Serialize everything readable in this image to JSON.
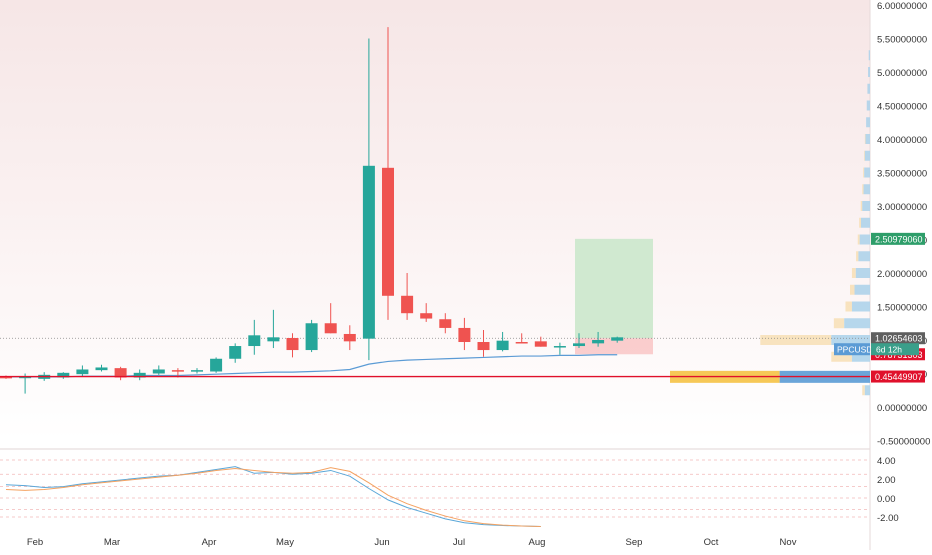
{
  "colors": {
    "up": "#26a69a",
    "down": "#ef5350",
    "ma": "#5b9bd5",
    "redline": "#e0102b",
    "vp_up": "#aed3ea",
    "vp_down": "#f7e0b8",
    "vp_up_poc": "#5b9bd5",
    "vp_down_poc": "#f5c245",
    "target": "#c8e6c9",
    "stop": "#f9c6c6",
    "osc1": "#5aa7d8",
    "osc2": "#f4a261"
  },
  "chart_data": [
    {
      "type": "candlestick",
      "symbol": "PPCUSD",
      "interval": "1W",
      "ylim": [
        -0.5,
        6.0
      ],
      "y_ticks": [
        "-0.50000000",
        "0.00000000",
        "0.50000000",
        "1.00000000",
        "1.50000000",
        "2.00000000",
        "2.50000000",
        "3.00000000",
        "3.50000000",
        "4.00000000",
        "4.50000000",
        "5.00000000",
        "5.50000000",
        "6.00000000"
      ],
      "x_ticks": [
        "Feb",
        "Mar",
        "Apr",
        "May",
        "Jun",
        "Jul",
        "Aug",
        "Sep",
        "Oct",
        "Nov"
      ],
      "candles": [
        {
          "o": 0.45,
          "h": 0.47,
          "l": 0.42,
          "c": 0.44
        },
        {
          "o": 0.43,
          "h": 0.5,
          "l": 0.2,
          "c": 0.46
        },
        {
          "o": 0.42,
          "h": 0.52,
          "l": 0.39,
          "c": 0.48
        },
        {
          "o": 0.44,
          "h": 0.52,
          "l": 0.42,
          "c": 0.51
        },
        {
          "o": 0.49,
          "h": 0.62,
          "l": 0.46,
          "c": 0.56
        },
        {
          "o": 0.55,
          "h": 0.63,
          "l": 0.53,
          "c": 0.59
        },
        {
          "o": 0.58,
          "h": 0.6,
          "l": 0.4,
          "c": 0.44
        },
        {
          "o": 0.44,
          "h": 0.56,
          "l": 0.4,
          "c": 0.51
        },
        {
          "o": 0.5,
          "h": 0.62,
          "l": 0.48,
          "c": 0.56
        },
        {
          "o": 0.55,
          "h": 0.58,
          "l": 0.44,
          "c": 0.53
        },
        {
          "o": 0.53,
          "h": 0.58,
          "l": 0.5,
          "c": 0.55
        },
        {
          "o": 0.53,
          "h": 0.74,
          "l": 0.51,
          "c": 0.72
        },
        {
          "o": 0.72,
          "h": 0.95,
          "l": 0.66,
          "c": 0.91
        },
        {
          "o": 0.91,
          "h": 1.3,
          "l": 0.78,
          "c": 1.07
        },
        {
          "o": 0.98,
          "h": 1.45,
          "l": 0.88,
          "c": 1.04
        },
        {
          "o": 1.03,
          "h": 1.1,
          "l": 0.74,
          "c": 0.85
        },
        {
          "o": 0.85,
          "h": 1.3,
          "l": 0.82,
          "c": 1.25
        },
        {
          "o": 1.25,
          "h": 1.55,
          "l": 1.1,
          "c": 1.1
        },
        {
          "o": 1.09,
          "h": 1.22,
          "l": 0.85,
          "c": 0.98
        },
        {
          "o": 1.02,
          "h": 5.5,
          "l": 0.7,
          "c": 3.6
        },
        {
          "o": 3.57,
          "h": 5.67,
          "l": 1.3,
          "c": 1.66
        },
        {
          "o": 1.66,
          "h": 2.0,
          "l": 1.3,
          "c": 1.4
        },
        {
          "o": 1.4,
          "h": 1.55,
          "l": 1.27,
          "c": 1.32
        },
        {
          "o": 1.31,
          "h": 1.4,
          "l": 1.1,
          "c": 1.18
        },
        {
          "o": 1.18,
          "h": 1.33,
          "l": 0.85,
          "c": 0.97
        },
        {
          "o": 0.97,
          "h": 1.15,
          "l": 0.75,
          "c": 0.85
        },
        {
          "o": 0.85,
          "h": 1.12,
          "l": 0.83,
          "c": 0.99
        },
        {
          "o": 0.97,
          "h": 1.1,
          "l": 0.95,
          "c": 0.96
        },
        {
          "o": 0.98,
          "h": 1.05,
          "l": 0.9,
          "c": 0.9
        },
        {
          "o": 0.89,
          "h": 0.96,
          "l": 0.78,
          "c": 0.91
        },
        {
          "o": 0.91,
          "h": 1.1,
          "l": 0.88,
          "c": 0.95
        },
        {
          "o": 0.95,
          "h": 1.12,
          "l": 0.9,
          "c": 1.0
        },
        {
          "o": 0.99,
          "h": 1.05,
          "l": 0.96,
          "c": 1.04
        }
      ],
      "moving_average": [
        0.45,
        0.45,
        0.45,
        0.45,
        0.46,
        0.46,
        0.46,
        0.47,
        0.47,
        0.47,
        0.48,
        0.49,
        0.5,
        0.51,
        0.52,
        0.52,
        0.53,
        0.54,
        0.56,
        0.64,
        0.68,
        0.7,
        0.71,
        0.72,
        0.73,
        0.74,
        0.75,
        0.76,
        0.76,
        0.77,
        0.77,
        0.78,
        0.78
      ],
      "red_horizontal_line": 0.45449907,
      "position": {
        "entry": 1.02654603,
        "target": 2.5097906,
        "stop": 0.78731303
      },
      "price_labels": [
        {
          "value": 2.5097906,
          "text": "2.50979060",
          "role": "target"
        },
        {
          "value": 1.02654603,
          "text": "1.02654603",
          "role": "last"
        },
        {
          "value": 0.78731303,
          "text": "0.78731303",
          "role": "stop"
        },
        {
          "value": 0.45449907,
          "text": "0.45449907",
          "role": "line"
        }
      ],
      "symbol_label": {
        "name": "PPCUSD",
        "countdown": "6d 12h"
      },
      "volume_profile": [
        {
          "y": 5.25,
          "up": 1,
          "down": 0
        },
        {
          "y": 5.0,
          "up": 1.5,
          "down": 0
        },
        {
          "y": 4.75,
          "up": 2,
          "down": 0
        },
        {
          "y": 4.5,
          "up": 2.5,
          "down": 0
        },
        {
          "y": 4.25,
          "up": 3,
          "down": 0
        },
        {
          "y": 4.0,
          "up": 3.5,
          "down": 0.5
        },
        {
          "y": 3.75,
          "up": 4,
          "down": 0.6
        },
        {
          "y": 3.5,
          "up": 4.5,
          "down": 0.8
        },
        {
          "y": 3.25,
          "up": 5,
          "down": 1
        },
        {
          "y": 3.0,
          "up": 6,
          "down": 1.2
        },
        {
          "y": 2.75,
          "up": 7,
          "down": 1.4
        },
        {
          "y": 2.5,
          "up": 8,
          "down": 1.5
        },
        {
          "y": 2.25,
          "up": 9,
          "down": 1.8
        },
        {
          "y": 2.0,
          "up": 11,
          "down": 3
        },
        {
          "y": 1.75,
          "up": 12,
          "down": 3.5
        },
        {
          "y": 1.5,
          "up": 14,
          "down": 5
        },
        {
          "y": 1.25,
          "up": 20,
          "down": 8
        },
        {
          "y": 1.0,
          "up": 30,
          "down": 55
        },
        {
          "y": 0.75,
          "up": 14,
          "down": 16
        },
        {
          "y": 0.45,
          "up": 70,
          "down": 85
        },
        {
          "y": 0.25,
          "up": 4,
          "down": 2
        }
      ]
    },
    {
      "type": "line",
      "name_hidden": true,
      "ylim": [
        -3.2,
        5.2
      ],
      "y_ticks": [
        "4.00",
        "2.00",
        "0.00",
        "-2.00"
      ],
      "series": [
        {
          "values": [
            1.4,
            1.3,
            1.1,
            1.2,
            1.5,
            1.7,
            1.9,
            2.1,
            2.3,
            2.4,
            2.7,
            3.0,
            3.3,
            2.6,
            2.7,
            2.5,
            2.6,
            2.9,
            2.3,
            1.0,
            -0.2,
            -1.0,
            -1.6,
            -2.2,
            -2.6,
            -2.8,
            -2.9,
            -2.95,
            -3.0
          ]
        },
        {
          "values": [
            0.9,
            0.8,
            0.9,
            1.1,
            1.4,
            1.6,
            1.8,
            2.0,
            2.2,
            2.4,
            2.6,
            2.9,
            3.1,
            2.9,
            2.7,
            2.6,
            2.7,
            3.2,
            2.8,
            1.6,
            0.3,
            -0.6,
            -1.3,
            -1.9,
            -2.4,
            -2.7,
            -2.85,
            -2.95,
            -3.0
          ]
        }
      ]
    }
  ]
}
